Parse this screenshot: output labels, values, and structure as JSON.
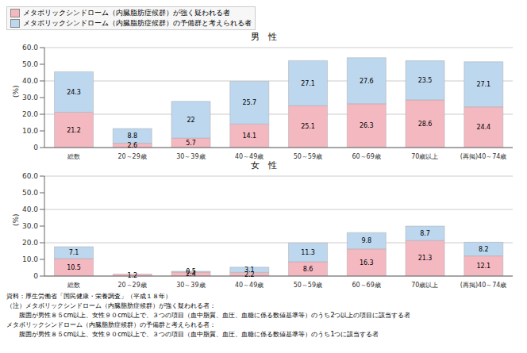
{
  "chart_data": [
    {
      "type": "bar",
      "title": "男　性",
      "ylabel": "(%)",
      "categories": [
        "総数",
        "20～29歳",
        "30～39歳",
        "40～49歳",
        "50～59歳",
        "60～69歳",
        "70歳以上",
        "(再掲)40～74歳"
      ],
      "series": [
        {
          "name": "メタボリックシンドローム（内臓脂肪症候群）が強く疑われる者",
          "color": "#f4b8c1",
          "values": [
            21.2,
            2.6,
            5.7,
            14.1,
            25.1,
            26.3,
            28.6,
            24.4
          ]
        },
        {
          "name": "メタボリックシンドローム（内臓脂肪症候群）の予備群と考えられる者",
          "color": "#bdd7ee",
          "values": [
            24.3,
            8.8,
            22.0,
            25.7,
            27.1,
            27.6,
            23.5,
            27.1
          ]
        }
      ],
      "ylim": [
        0,
        60
      ],
      "yticks": [
        0,
        {
          "value": 10,
          "label": "10.0"
        },
        {
          "value": 20,
          "label": "20.0"
        },
        {
          "value": 30,
          "label": "30.0"
        },
        {
          "value": 40,
          "label": "40.0"
        },
        {
          "value": 50,
          "label": "50.0"
        },
        {
          "value": 60,
          "label": "60.0"
        }
      ],
      "stacked": true,
      "data_labels": true,
      "grid": true,
      "legend": "top"
    },
    {
      "type": "bar",
      "title": "女　性",
      "ylabel": "(%)",
      "categories": [
        "総数",
        "20～29歳",
        "30～39歳",
        "40～49歳",
        "50～59歳",
        "60～69歳",
        "70歳以上",
        "(再掲)40～74歳"
      ],
      "series": [
        {
          "name": "メタボリックシンドローム（内臓脂肪症候群）が強く疑われる者",
          "color": "#f4b8c1",
          "values": [
            10.5,
            1.2,
            2.4,
            2.2,
            8.6,
            16.3,
            21.3,
            12.1
          ]
        },
        {
          "name": "メタボリックシンドローム（内臓脂肪症候群）の予備群と考えられる者",
          "color": "#bdd7ee",
          "values": [
            7.1,
            0.0,
            0.5,
            3.1,
            11.3,
            9.8,
            8.7,
            8.2
          ]
        }
      ],
      "ylim": [
        0,
        60
      ],
      "yticks": [
        0,
        {
          "value": 10,
          "label": "10.0"
        },
        {
          "value": 20,
          "label": "20.0"
        },
        {
          "value": 30,
          "label": "30.0"
        },
        {
          "value": 40,
          "label": "40.0"
        },
        {
          "value": 50,
          "label": "50.0"
        },
        {
          "value": 60,
          "label": "60.0"
        }
      ],
      "stacked": true,
      "data_labels": true,
      "grid": true,
      "annotations": [
        "資料：厚生労働省「国民健康・栄養調査」（平成１８年）",
        "（注）メタボリックシンドローム（内臓脂肪症候群）が強く疑われる者：",
        "　　腹囲が男性８５cm以上、女性９０cm以上で、３つの項目（血中脂質、血圧、血糖に係る数値基準等）のうち2つ以上の項目に該当する者",
        "メタボリックシンドローム（内臓脂肪症候群）の予備群と考えられる者：",
        "　　腹囲が男性８５cm以上、女性９０cm以上で、３つの項目（血中脂質、血圧、血糖に係る数値基準等）のうち1つに該当する者"
      ]
    }
  ]
}
